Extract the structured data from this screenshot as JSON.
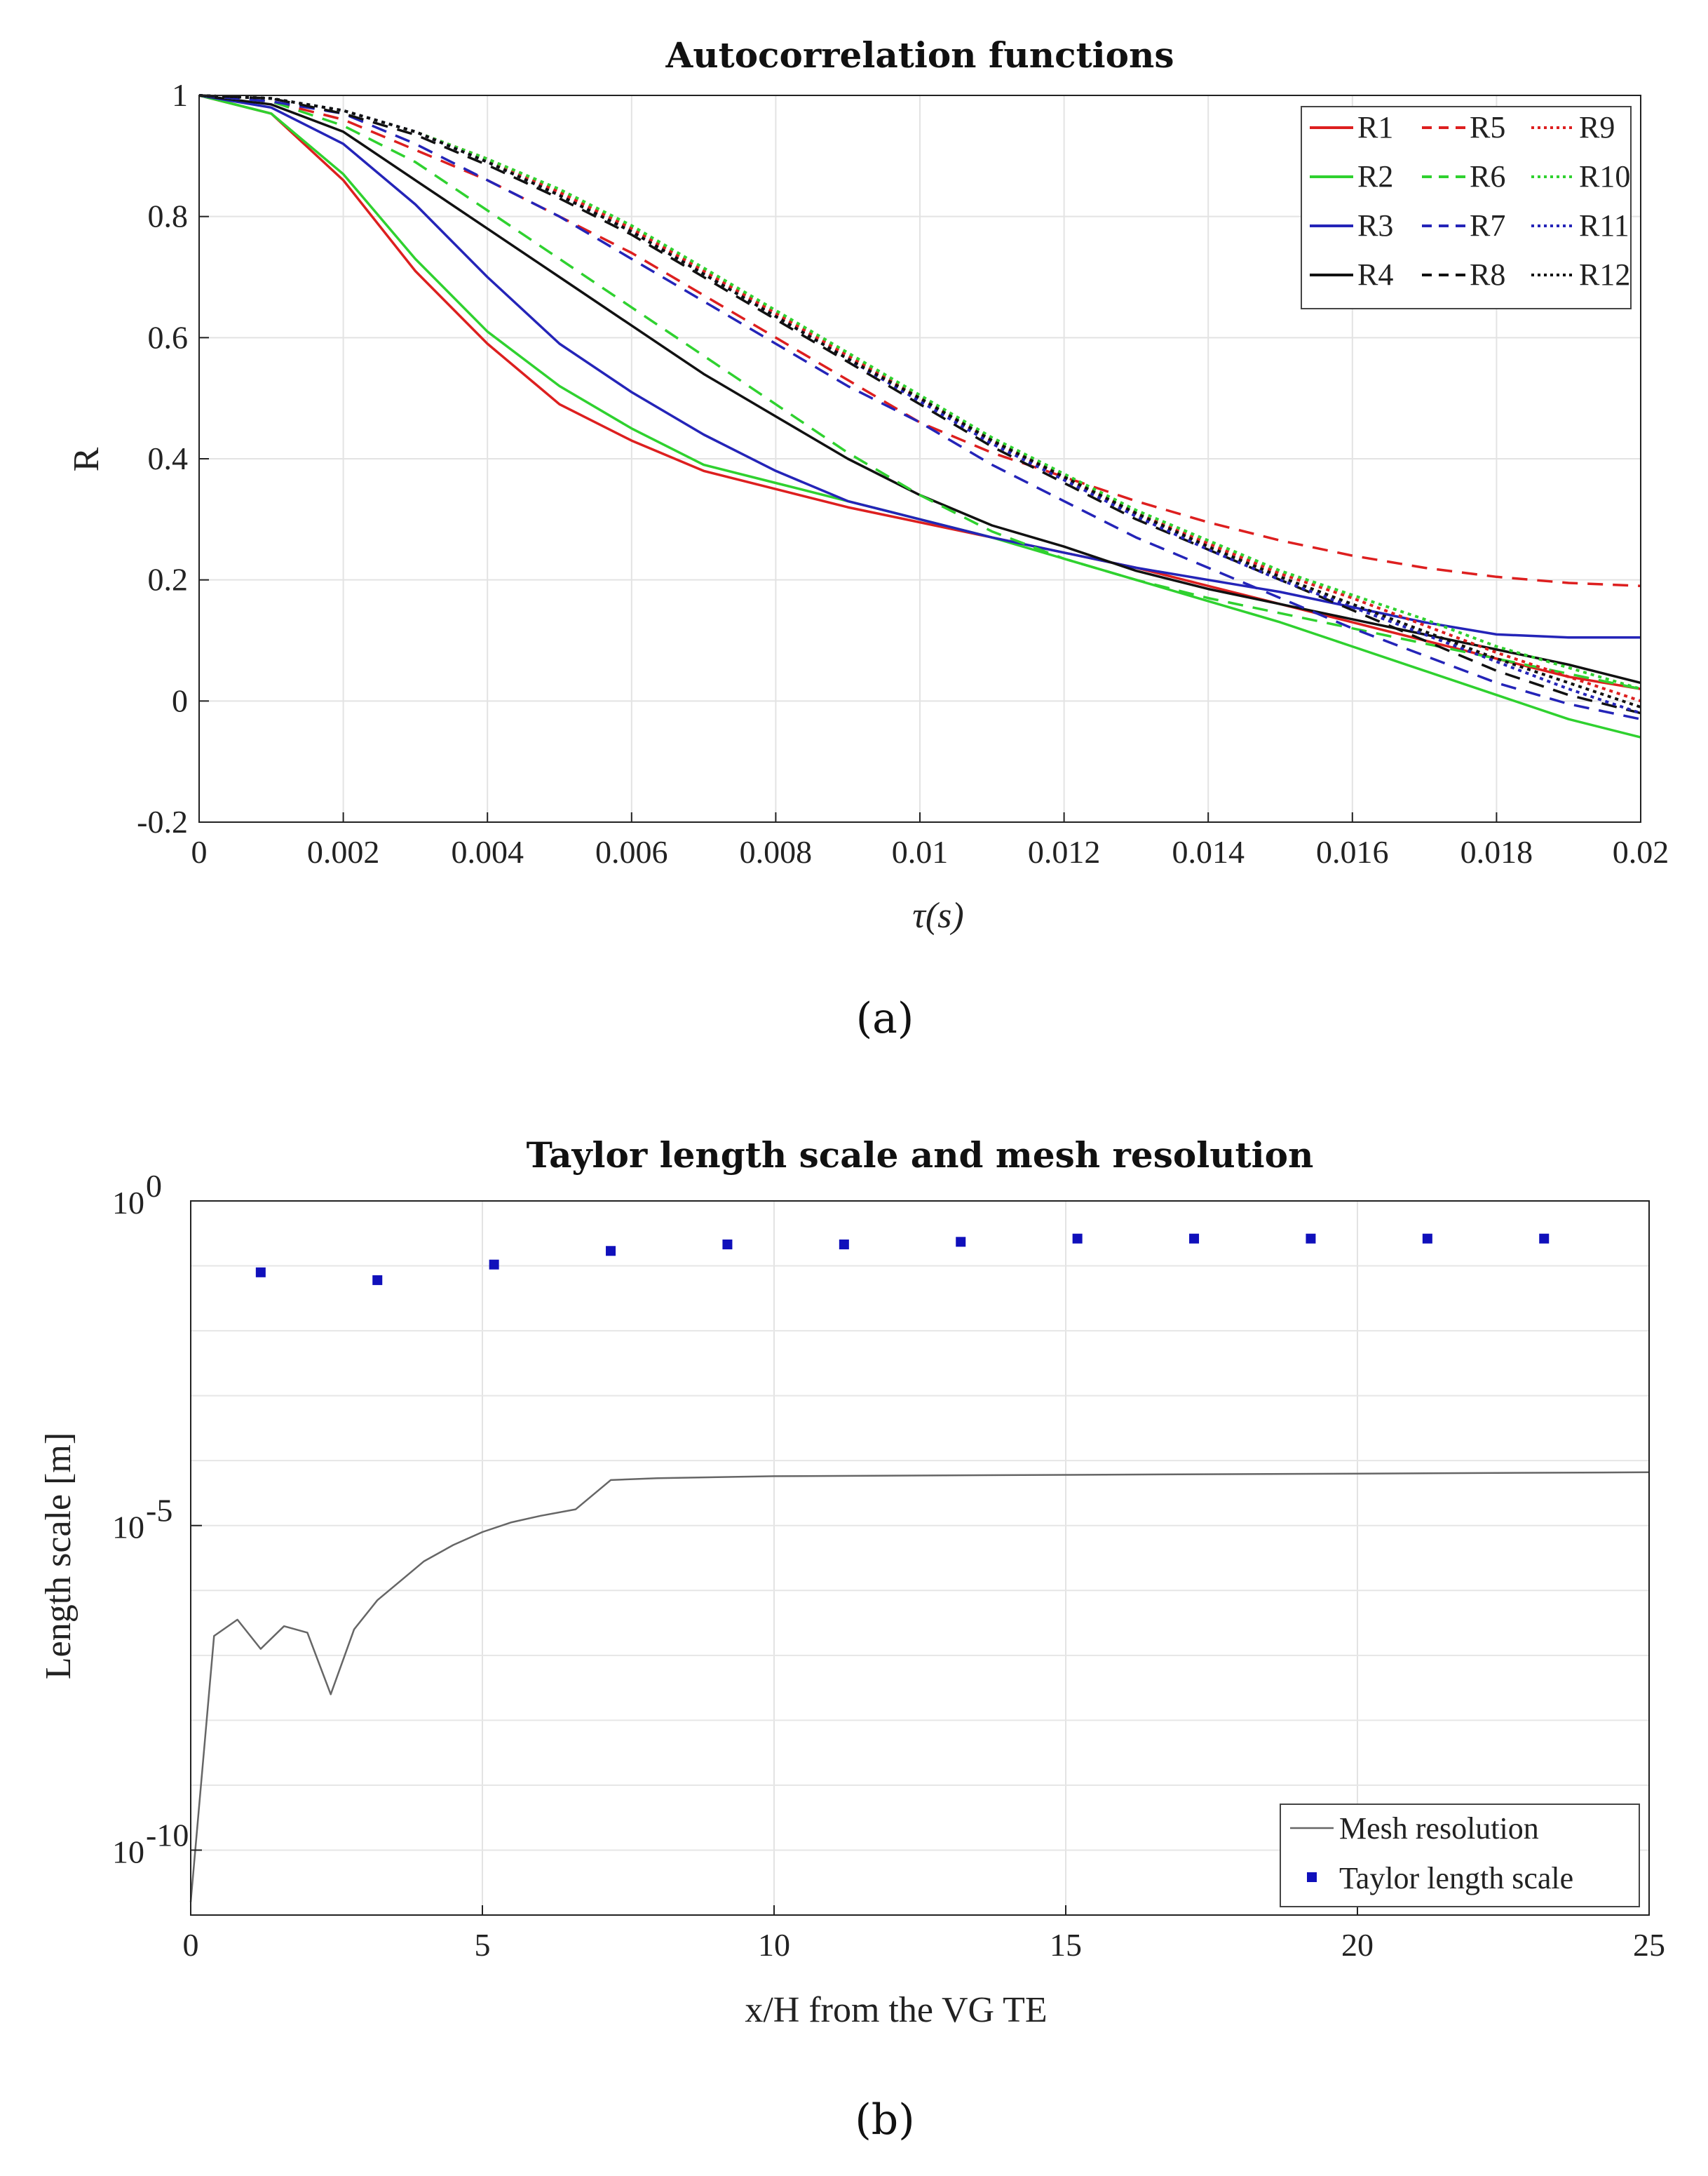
{
  "chart_data": [
    {
      "type": "line",
      "title": "Autocorrelation functions",
      "xlabel": "τ(s)",
      "ylabel": "R",
      "xlim": [
        0,
        0.02
      ],
      "ylim": [
        -0.2,
        1
      ],
      "xticks": [
        0,
        0.002,
        0.004,
        0.006,
        0.008,
        0.01,
        0.012,
        0.014,
        0.016,
        0.018,
        0.02
      ],
      "xtick_labels": [
        "0",
        "0.002",
        "0.004",
        "0.006",
        "0.008",
        "0.01",
        "0.012",
        "0.014",
        "0.016",
        "0.018",
        "0.02"
      ],
      "yticks": [
        -0.2,
        0,
        0.2,
        0.4,
        0.6,
        0.8,
        1
      ],
      "ytick_labels": [
        "-0.2",
        "0",
        "0.2",
        "0.4",
        "0.6",
        "0.8",
        "1"
      ],
      "grid": true,
      "legend_position": "top-right",
      "caption": "(a)",
      "x": [
        0,
        0.001,
        0.002,
        0.003,
        0.004,
        0.005,
        0.006,
        0.007,
        0.008,
        0.009,
        0.01,
        0.011,
        0.012,
        0.013,
        0.014,
        0.015,
        0.016,
        0.017,
        0.018,
        0.019,
        0.02
      ],
      "series": [
        {
          "name": "R1",
          "color": "#dd1f1f",
          "dash": "solid",
          "values": [
            1,
            0.97,
            0.86,
            0.71,
            0.59,
            0.49,
            0.43,
            0.38,
            0.35,
            0.32,
            0.295,
            0.27,
            0.245,
            0.22,
            0.19,
            0.16,
            0.13,
            0.1,
            0.07,
            0.04,
            0.02
          ]
        },
        {
          "name": "R2",
          "color": "#2fd12f",
          "dash": "solid",
          "values": [
            1,
            0.97,
            0.87,
            0.73,
            0.61,
            0.52,
            0.45,
            0.39,
            0.36,
            0.33,
            0.3,
            0.27,
            0.235,
            0.2,
            0.165,
            0.13,
            0.09,
            0.05,
            0.01,
            -0.03,
            -0.06
          ]
        },
        {
          "name": "R3",
          "color": "#2424b8",
          "dash": "solid",
          "values": [
            1,
            0.98,
            0.92,
            0.82,
            0.7,
            0.59,
            0.51,
            0.44,
            0.38,
            0.33,
            0.3,
            0.27,
            0.245,
            0.22,
            0.2,
            0.18,
            0.155,
            0.13,
            0.11,
            0.105,
            0.105
          ]
        },
        {
          "name": "R4",
          "color": "#111111",
          "dash": "solid",
          "values": [
            1,
            0.985,
            0.94,
            0.86,
            0.78,
            0.7,
            0.62,
            0.54,
            0.47,
            0.4,
            0.34,
            0.29,
            0.255,
            0.215,
            0.185,
            0.16,
            0.135,
            0.11,
            0.085,
            0.06,
            0.03
          ]
        },
        {
          "name": "R5",
          "color": "#dd1f1f",
          "dash": "dash",
          "values": [
            1,
            0.99,
            0.96,
            0.91,
            0.86,
            0.8,
            0.74,
            0.67,
            0.6,
            0.53,
            0.46,
            0.41,
            0.37,
            0.33,
            0.295,
            0.265,
            0.24,
            0.22,
            0.205,
            0.195,
            0.19
          ]
        },
        {
          "name": "R6",
          "color": "#2fd12f",
          "dash": "dash",
          "values": [
            1,
            0.99,
            0.95,
            0.89,
            0.81,
            0.73,
            0.65,
            0.57,
            0.49,
            0.41,
            0.34,
            0.28,
            0.235,
            0.2,
            0.17,
            0.145,
            0.12,
            0.095,
            0.07,
            0.045,
            0.02
          ]
        },
        {
          "name": "R7",
          "color": "#2424b8",
          "dash": "dash",
          "values": [
            1,
            0.99,
            0.97,
            0.92,
            0.86,
            0.8,
            0.73,
            0.66,
            0.59,
            0.52,
            0.46,
            0.39,
            0.33,
            0.27,
            0.22,
            0.17,
            0.12,
            0.075,
            0.03,
            -0.005,
            -0.03
          ]
        },
        {
          "name": "R8",
          "color": "#111111",
          "dash": "dash",
          "values": [
            1,
            0.995,
            0.97,
            0.935,
            0.885,
            0.83,
            0.77,
            0.7,
            0.63,
            0.56,
            0.49,
            0.42,
            0.36,
            0.3,
            0.25,
            0.2,
            0.15,
            0.1,
            0.05,
            0.01,
            -0.02
          ]
        },
        {
          "name": "R9",
          "color": "#dd1f1f",
          "dash": "dot",
          "values": [
            1,
            0.995,
            0.975,
            0.94,
            0.895,
            0.84,
            0.78,
            0.71,
            0.64,
            0.57,
            0.5,
            0.43,
            0.37,
            0.31,
            0.26,
            0.21,
            0.17,
            0.125,
            0.08,
            0.04,
            0.0
          ]
        },
        {
          "name": "R10",
          "color": "#2fd12f",
          "dash": "dot",
          "values": [
            1,
            0.995,
            0.975,
            0.94,
            0.895,
            0.845,
            0.785,
            0.715,
            0.645,
            0.575,
            0.505,
            0.435,
            0.375,
            0.315,
            0.265,
            0.215,
            0.175,
            0.135,
            0.09,
            0.055,
            0.02
          ]
        },
        {
          "name": "R11",
          "color": "#2424b8",
          "dash": "dot",
          "values": [
            1,
            0.995,
            0.975,
            0.94,
            0.89,
            0.835,
            0.775,
            0.705,
            0.635,
            0.565,
            0.495,
            0.425,
            0.365,
            0.305,
            0.25,
            0.2,
            0.155,
            0.11,
            0.065,
            0.02,
            -0.02
          ]
        },
        {
          "name": "R12",
          "color": "#111111",
          "dash": "dot",
          "values": [
            1,
            0.995,
            0.975,
            0.94,
            0.89,
            0.835,
            0.775,
            0.705,
            0.635,
            0.565,
            0.5,
            0.43,
            0.37,
            0.31,
            0.255,
            0.205,
            0.16,
            0.115,
            0.07,
            0.03,
            -0.01
          ]
        }
      ]
    },
    {
      "type": "line",
      "title": "Taylor length scale and mesh resolution",
      "xlabel": "x/H from the VG TE",
      "ylabel": "Length scale [m]",
      "yscale": "log",
      "xlim": [
        0,
        25
      ],
      "ylim_log10": [
        -11,
        0
      ],
      "xticks": [
        0,
        5,
        10,
        15,
        20,
        25
      ],
      "xtick_labels": [
        "0",
        "5",
        "10",
        "15",
        "20",
        "25"
      ],
      "yticks_log10": [
        -10,
        -5,
        0
      ],
      "ytick_labels": [
        "10",
        "10",
        "10"
      ],
      "ytick_exponents": [
        "-10",
        "-5",
        "0"
      ],
      "grid": true,
      "legend_position": "bottom-right",
      "caption": "(b)",
      "series": [
        {
          "name": "Mesh resolution",
          "color": "#666666",
          "marker": "line",
          "x": [
            0,
            0.4,
            0.8,
            1.2,
            1.6,
            2.0,
            2.4,
            2.8,
            3.2,
            3.6,
            4.0,
            4.5,
            5.0,
            5.5,
            6.0,
            6.6,
            7.2,
            8,
            10,
            15,
            20,
            25
          ],
          "y_log10": [
            -10.8,
            -6.7,
            -6.45,
            -6.9,
            -6.55,
            -6.65,
            -7.6,
            -6.6,
            -6.15,
            -5.85,
            -5.55,
            -5.3,
            -5.1,
            -4.95,
            -4.85,
            -4.75,
            -4.3,
            -4.27,
            -4.24,
            -4.22,
            -4.2,
            -4.18
          ]
        },
        {
          "name": "Taylor length scale",
          "color": "#1010bb",
          "marker": "square",
          "x": [
            1.2,
            3.2,
            5.2,
            7.2,
            9.2,
            11.2,
            13.2,
            15.2,
            17.2,
            19.2,
            21.2,
            23.2
          ],
          "y_log10": [
            -1.1,
            -1.22,
            -0.98,
            -0.77,
            -0.67,
            -0.67,
            -0.63,
            -0.58,
            -0.58,
            -0.58,
            -0.58,
            -0.58
          ]
        }
      ]
    }
  ]
}
